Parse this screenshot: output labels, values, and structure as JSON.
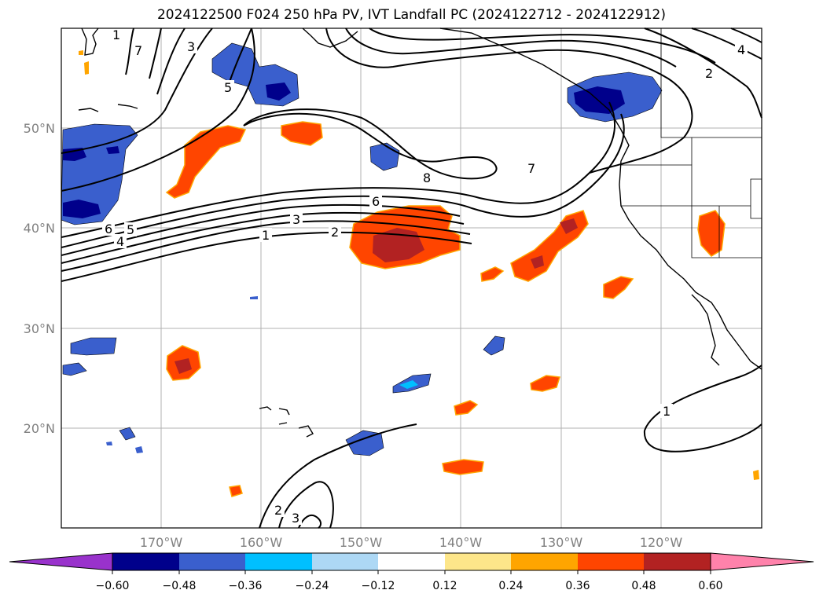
{
  "title": "2024122500 F024 250 hPa PV, IVT Landfall PC (2024122712 - 2024122912)",
  "map": {
    "lat_labels": [
      "50°N",
      "40°N",
      "30°N",
      "20°N"
    ],
    "lon_labels": [
      "170°W",
      "160°W",
      "150°W",
      "140°W",
      "130°W",
      "120°W"
    ],
    "pv_contour_labels": [
      "1",
      "2",
      "3",
      "4",
      "5",
      "6",
      "7",
      "8",
      "1",
      "2",
      "3",
      "4",
      "5",
      "6",
      "7",
      "1",
      "2",
      "3"
    ],
    "ocean_color": "#ffffff",
    "grid_color": "#b0b0b0"
  },
  "colorbar": {
    "ticks": [
      "−0.60",
      "−0.48",
      "−0.36",
      "−0.24",
      "−0.12",
      "0.12",
      "0.24",
      "0.36",
      "0.48",
      "0.60"
    ],
    "colors": [
      "#9932cc",
      "#00008b",
      "#3a5fcd",
      "#00bfff",
      "#add8f5",
      "#ffffff",
      "#fde68a",
      "#ffa500",
      "#ff4500",
      "#b22222",
      "#ff82ab"
    ]
  }
}
